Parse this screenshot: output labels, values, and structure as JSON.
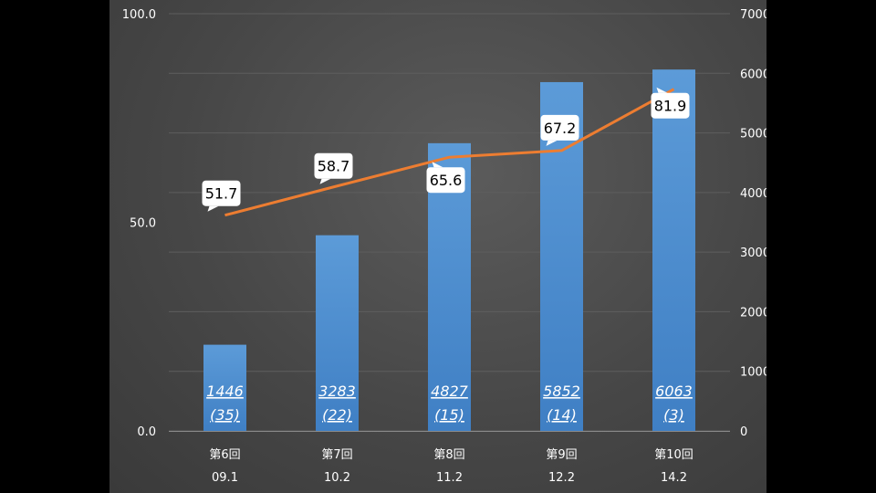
{
  "chart_data": {
    "type": "bar",
    "categories": [
      "第6回",
      "第7回",
      "第8回",
      "第9回",
      "第10回"
    ],
    "category_sublabels": [
      "09.1",
      "10.2",
      "11.2",
      "12.2",
      "14.2"
    ],
    "series": [
      {
        "type": "bar",
        "axis": "right",
        "values": [
          1446,
          3283,
          4827,
          5852,
          6063
        ],
        "labels": [
          [
            "1446",
            "(35)"
          ],
          [
            "3283",
            "(22)"
          ],
          [
            "4827",
            "(15)"
          ],
          [
            "5852",
            "(14)"
          ],
          [
            "6063",
            "(3)"
          ]
        ],
        "color": "#5b9bd5"
      },
      {
        "type": "line",
        "axis": "left",
        "values": [
          51.7,
          58.7,
          65.6,
          67.2,
          81.9
        ],
        "labels": [
          "51.7",
          "58.7",
          "65.6",
          "67.2",
          "81.9"
        ],
        "color": "#ed7d31"
      }
    ],
    "y_left": {
      "range": [
        0,
        100
      ],
      "ticks": [
        "0.0",
        "50.0",
        "100.0"
      ]
    },
    "y_right": {
      "range": [
        0,
        7000
      ],
      "ticks": [
        "0",
        "1000",
        "2000",
        "3000",
        "4000",
        "5000",
        "6000",
        "7000"
      ]
    },
    "grid": true,
    "legend": "none",
    "title": "",
    "xlabel": "",
    "ylabel": "",
    "colors": {
      "background": "#484848",
      "grid": "#5e5e5e",
      "text": "#ffffff",
      "label_box": "#ffffff"
    }
  }
}
